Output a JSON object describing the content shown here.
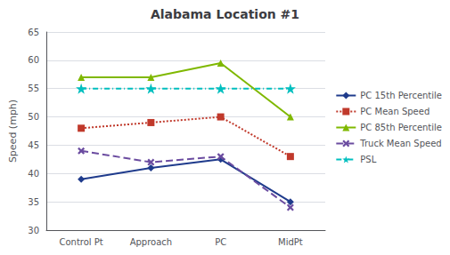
{
  "chart_data": {
    "type": "line",
    "title": "Alabama Location #1",
    "categories": [
      "Control Pt",
      "Approach",
      "PC",
      "MidPt"
    ],
    "series": [
      {
        "name": "PC 15th Percentile",
        "color": "#1F3B8C",
        "marker": "diamond",
        "line_style": "solid",
        "values": [
          39,
          41,
          42.5,
          35
        ]
      },
      {
        "name": "PC Mean Speed",
        "color": "#C0392B",
        "marker": "square",
        "line_style": "dotted",
        "values": [
          48,
          49,
          50,
          43
        ]
      },
      {
        "name": "PC 85th Percentile",
        "color": "#7FB800",
        "marker": "triangle",
        "line_style": "solid",
        "values": [
          57,
          57,
          59.5,
          50
        ]
      },
      {
        "name": "Truck Mean Speed",
        "color": "#6B4CA0",
        "marker": "x",
        "line_style": "dashed",
        "values": [
          44,
          42,
          43,
          34
        ]
      },
      {
        "name": "PSL",
        "color": "#00BFBF",
        "marker": "star",
        "line_style": "dashdot",
        "values": [
          55,
          55,
          55,
          55
        ]
      }
    ],
    "ylabel": "Speed (mph)",
    "ylim": [
      30,
      65
    ],
    "yticks": [
      30,
      35,
      40,
      45,
      50,
      55,
      60,
      65
    ],
    "grid": true,
    "legend": "right"
  }
}
